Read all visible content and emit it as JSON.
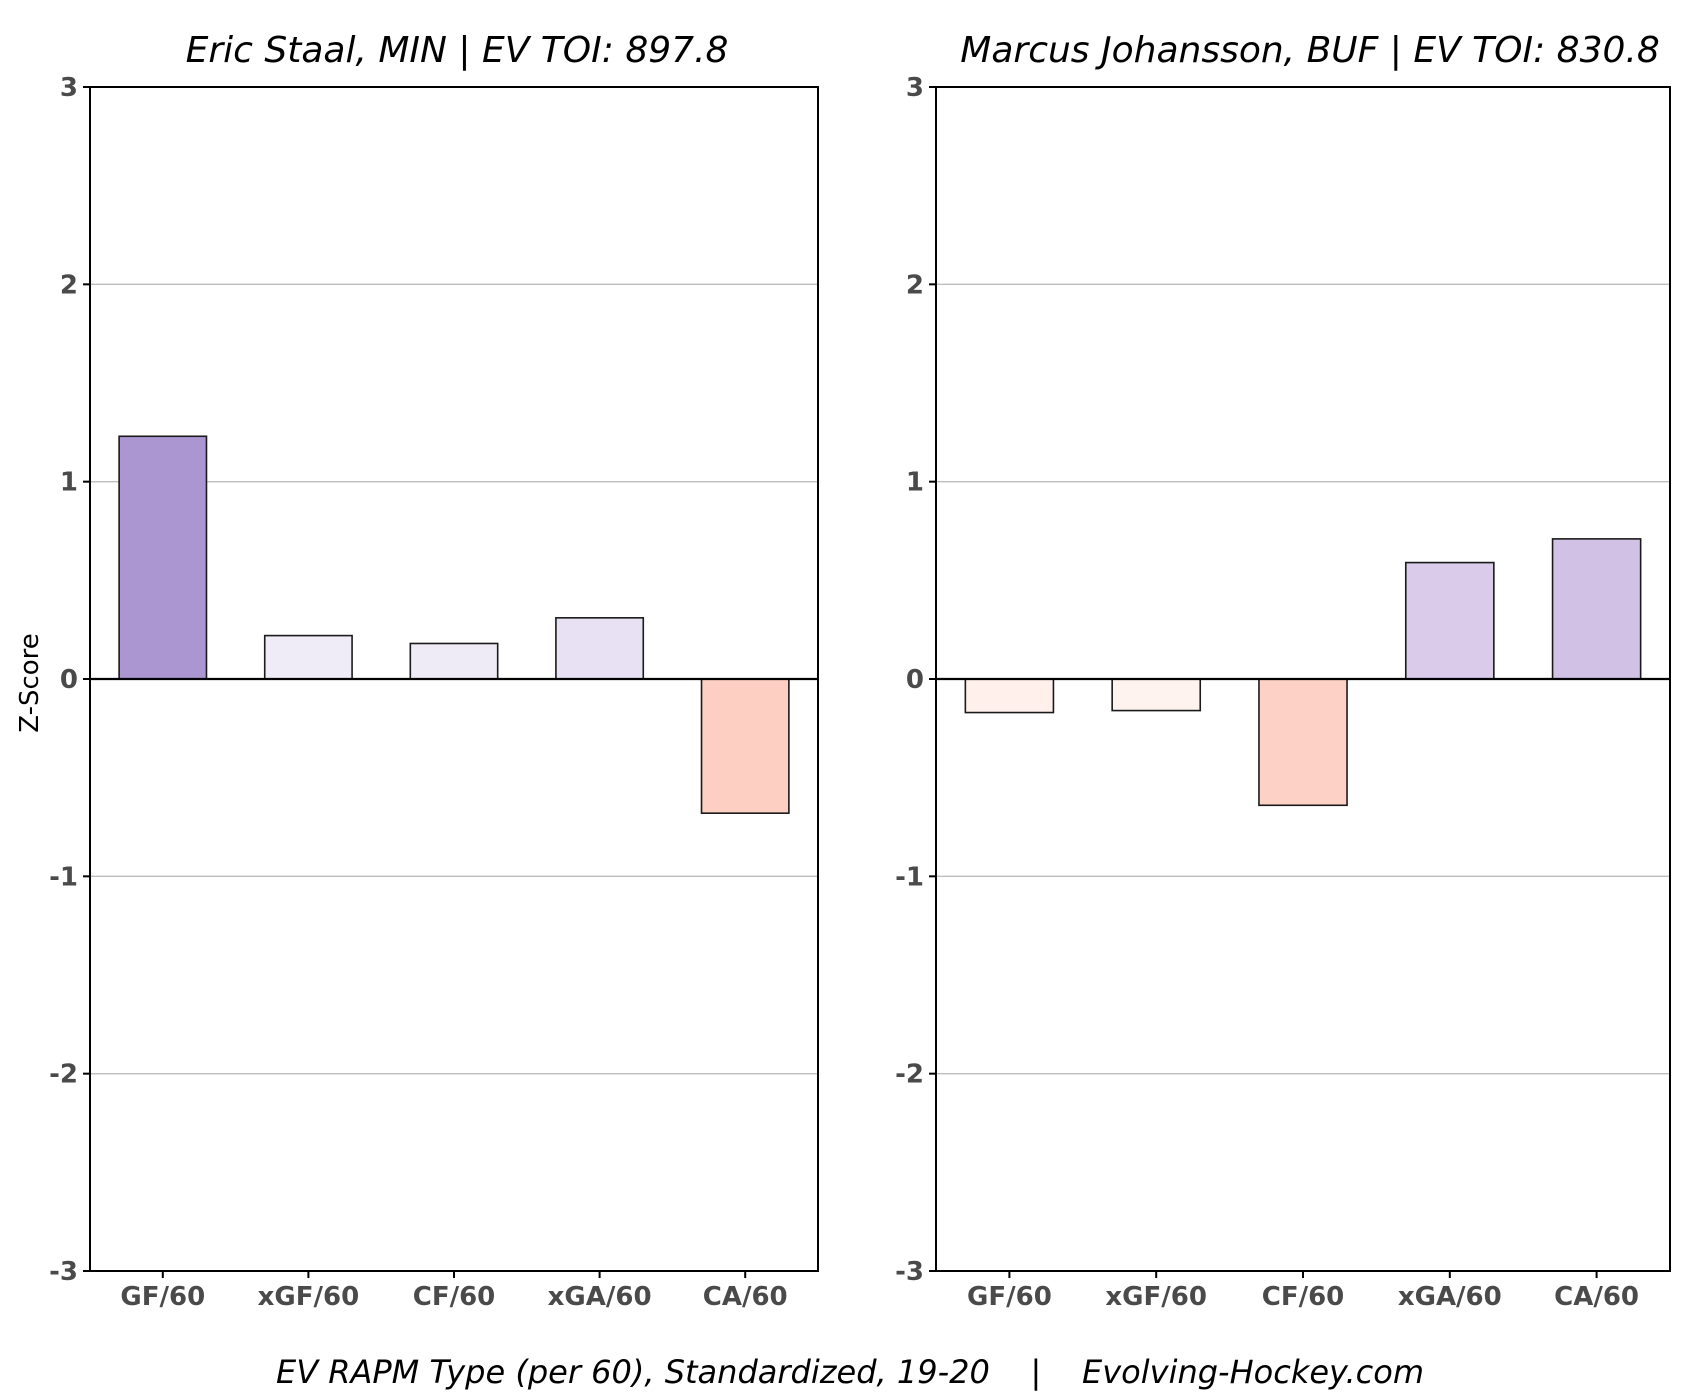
{
  "caption": "EV RAPM Type (per 60), Standardized, 19-20    |    Evolving-Hockey.com",
  "y_axis_label": "Z-Score",
  "chart_data": [
    {
      "type": "bar",
      "title": "Eric Staal, MIN  |  EV TOI: 897.8",
      "ylabel": "Z-Score",
      "xlabel": "",
      "ylim": [
        -3,
        3
      ],
      "yticks": [
        -3,
        -2,
        -1,
        0,
        1,
        2,
        3
      ],
      "grid": true,
      "categories": [
        "GF/60",
        "xGF/60",
        "CF/60",
        "xGA/60",
        "CA/60"
      ],
      "values": [
        1.23,
        0.22,
        0.18,
        0.31,
        -0.68
      ],
      "colors": [
        "#ab96d1",
        "#f0ecf7",
        "#efebf6",
        "#e8e1f3",
        "#fdcfc2"
      ]
    },
    {
      "type": "bar",
      "title": "Marcus Johansson, BUF  |  EV TOI: 830.8",
      "ylabel": "",
      "xlabel": "",
      "ylim": [
        -3,
        3
      ],
      "yticks": [
        -3,
        -2,
        -1,
        0,
        1,
        2,
        3
      ],
      "grid": true,
      "categories": [
        "GF/60",
        "xGF/60",
        "CF/60",
        "xGA/60",
        "CA/60"
      ],
      "values": [
        -0.17,
        -0.16,
        -0.64,
        0.59,
        0.71
      ],
      "colors": [
        "#fff0ec",
        "#fff3f0",
        "#fdd1c5",
        "#d9cbe9",
        "#d1c2e5"
      ]
    }
  ]
}
